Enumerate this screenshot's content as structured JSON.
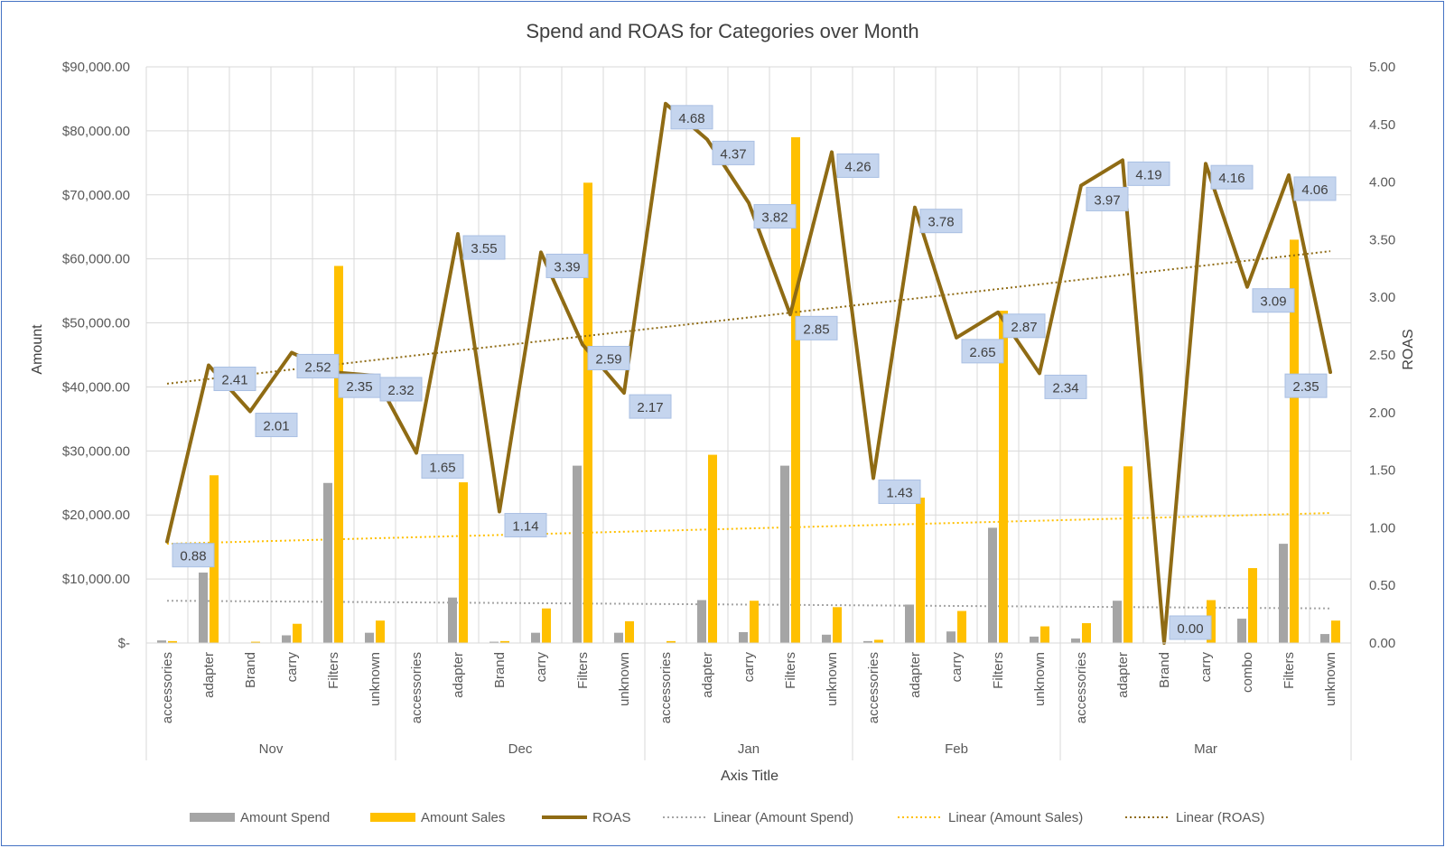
{
  "chart_data": {
    "type": "bar",
    "title": "Spend and ROAS for Categories over Month",
    "xlabel": "Axis Title",
    "ylabel": "Amount",
    "y2label": "ROAS",
    "ylim": [
      0,
      90000
    ],
    "y2lim": [
      0,
      5
    ],
    "y_ticks": [
      "$-",
      "$10,000.00",
      "$20,000.00",
      "$30,000.00",
      "$40,000.00",
      "$50,000.00",
      "$60,000.00",
      "$70,000.00",
      "$80,000.00",
      "$90,000.00"
    ],
    "y2_ticks": [
      "0.00",
      "0.50",
      "1.00",
      "1.50",
      "2.00",
      "2.50",
      "3.00",
      "3.50",
      "4.00",
      "4.50",
      "5.00"
    ],
    "grid": true,
    "legend_position": "bottom",
    "groups": [
      {
        "name": "Nov",
        "categories": [
          "accessories",
          "adapter",
          "Brand",
          "carry",
          "Filters",
          "unknown"
        ]
      },
      {
        "name": "Dec",
        "categories": [
          "accessories",
          "adapter",
          "Brand",
          "carry",
          "Filters",
          "unknown"
        ]
      },
      {
        "name": "Jan",
        "categories": [
          "accessories",
          "adapter",
          "carry",
          "Filters",
          "unknown"
        ]
      },
      {
        "name": "Feb",
        "categories": [
          "accessories",
          "adapter",
          "carry",
          "Filters",
          "unknown"
        ]
      },
      {
        "name": "Mar",
        "categories": [
          "accessories",
          "adapter",
          "Brand",
          "carry",
          "combo",
          "Filters",
          "unknown"
        ]
      }
    ],
    "series": [
      {
        "name": "Amount Spend",
        "type": "bar",
        "color": "#a5a5a5",
        "values": [
          400,
          11000,
          0,
          1200,
          25000,
          1600,
          0,
          7100,
          200,
          1600,
          27700,
          1600,
          0,
          6700,
          1700,
          27700,
          1300,
          300,
          6000,
          1800,
          18000,
          1000,
          700,
          6600,
          0,
          0,
          3800,
          15500,
          1400
        ]
      },
      {
        "name": "Amount Sales",
        "type": "bar",
        "color": "#ffc000",
        "values": [
          300,
          26200,
          200,
          3000,
          58900,
          3500,
          0,
          25100,
          300,
          5400,
          71900,
          3400,
          300,
          29400,
          6600,
          79000,
          5600,
          500,
          22700,
          5000,
          51900,
          2600,
          3100,
          27600,
          0,
          6700,
          11700,
          63000,
          3500
        ]
      },
      {
        "name": "ROAS",
        "type": "line",
        "color": "#8f6b14",
        "axis": "secondary",
        "values": [
          0.88,
          2.41,
          2.01,
          2.52,
          2.35,
          2.32,
          1.65,
          3.55,
          1.14,
          3.39,
          2.59,
          2.17,
          4.68,
          4.37,
          3.82,
          2.85,
          4.26,
          1.43,
          3.78,
          2.65,
          2.87,
          2.34,
          3.97,
          4.19,
          0.0,
          4.16,
          3.09,
          4.06,
          2.35
        ],
        "labels": [
          "0.88",
          "2.41",
          "2.01",
          "2.52",
          "2.35",
          "2.32",
          "1.65",
          "3.55",
          "1.14",
          "3.39",
          "2.59",
          "2.17",
          "4.68",
          "4.37",
          "3.82",
          "2.85",
          "4.26",
          "1.43",
          "3.78",
          "2.65",
          "2.87",
          "2.34",
          "3.97",
          "4.19",
          "0.00",
          "4.16",
          "3.09",
          "4.06",
          "2.35"
        ]
      }
    ],
    "trendlines": [
      {
        "name": "Linear (Amount Spend)",
        "color": "#a5a5a5",
        "axis": "primary",
        "start": 6600,
        "end": 5400
      },
      {
        "name": "Linear (Amount Sales)",
        "color": "#ffc000",
        "axis": "primary",
        "start": 15500,
        "end": 20300
      },
      {
        "name": "Linear (ROAS)",
        "color": "#8f6b14",
        "axis": "secondary",
        "start": 2.25,
        "end": 3.4
      }
    ],
    "legend": [
      "Amount Spend",
      "Amount Sales",
      "ROAS",
      "Linear (Amount Spend)",
      "Linear (Amount Sales)",
      "Linear (ROAS)"
    ]
  }
}
